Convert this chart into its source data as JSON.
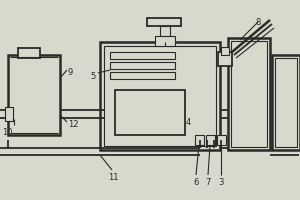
{
  "bg_color": "#d8d8cc",
  "line_color": "#2a2a2a",
  "lw_main": 1.3,
  "lw_thin": 0.8,
  "lw_thick": 1.8
}
